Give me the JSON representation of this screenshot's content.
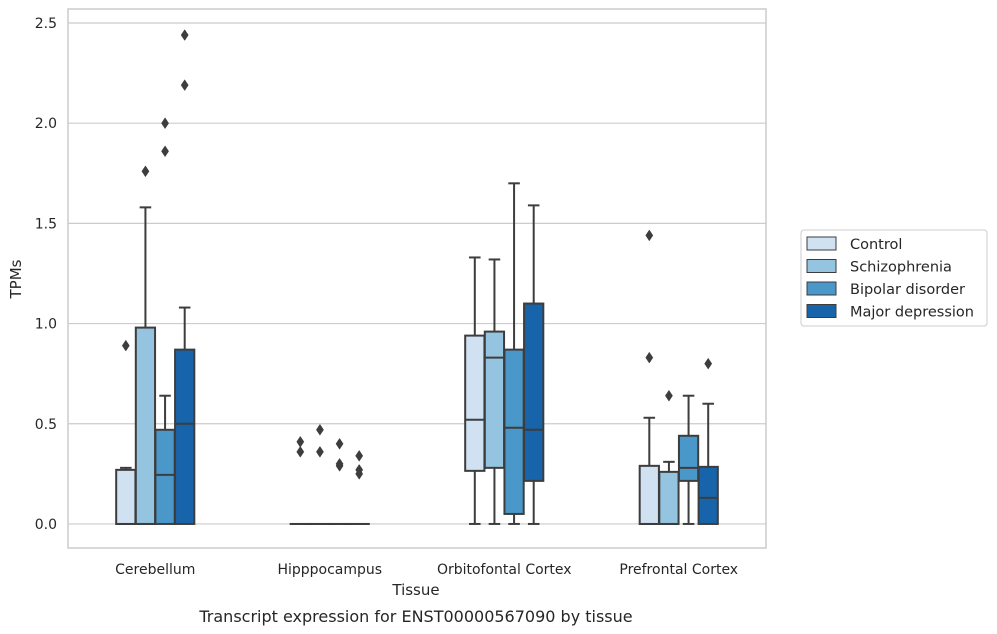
{
  "chart_data": {
    "type": "box",
    "caption": "Transcript expression for ENST00000567090 by tissue",
    "xlabel": "Tissue",
    "ylabel": "TPMs",
    "ylim": [
      -0.12,
      2.57
    ],
    "yticks": [
      "0.0",
      "0.5",
      "1.0",
      "1.5",
      "2.0",
      "2.5"
    ],
    "ytick_values": [
      0,
      0.5,
      1.0,
      1.5,
      2.0,
      2.5
    ],
    "grid": true,
    "legend_position": "right",
    "categories": [
      "Cerebellum",
      "Hipppocampus",
      "Orbitofontal Cortex",
      "Prefrontal Cortex"
    ],
    "series": [
      {
        "name": "Control",
        "color": "#d0e1f2",
        "boxes": [
          {
            "q1": 0.0,
            "median": 0.0,
            "q3": 0.27,
            "whisker_low": 0.0,
            "whisker_high": 0.28,
            "outliers": [
              0.89
            ]
          },
          {
            "q1": 0.0,
            "median": 0.0,
            "q3": 0.0,
            "whisker_low": 0.0,
            "whisker_high": 0.0,
            "outliers": [
              0.41,
              0.36
            ]
          },
          {
            "q1": 0.265,
            "median": 0.52,
            "q3": 0.94,
            "whisker_low": 0.0,
            "whisker_high": 1.33,
            "outliers": []
          },
          {
            "q1": 0.0,
            "median": 0.0,
            "q3": 0.29,
            "whisker_low": 0.0,
            "whisker_high": 0.53,
            "outliers": [
              1.44,
              0.83
            ]
          }
        ]
      },
      {
        "name": "Schizophrenia",
        "color": "#94c4df",
        "boxes": [
          {
            "q1": 0.0,
            "median": 0.0,
            "q3": 0.98,
            "whisker_low": 0.0,
            "whisker_high": 1.58,
            "outliers": [
              1.76
            ]
          },
          {
            "q1": 0.0,
            "median": 0.0,
            "q3": 0.0,
            "whisker_low": 0.0,
            "whisker_high": 0.0,
            "outliers": [
              0.47,
              0.36
            ]
          },
          {
            "q1": 0.28,
            "median": 0.83,
            "q3": 0.96,
            "whisker_low": 0.0,
            "whisker_high": 1.32,
            "outliers": []
          },
          {
            "q1": 0.0,
            "median": 0.0,
            "q3": 0.26,
            "whisker_low": 0.0,
            "whisker_high": 0.31,
            "outliers": [
              0.64
            ]
          }
        ]
      },
      {
        "name": "Bipolar disorder",
        "color": "#4a98c9",
        "boxes": [
          {
            "q1": 0.0,
            "median": 0.245,
            "q3": 0.47,
            "whisker_low": 0.0,
            "whisker_high": 0.64,
            "outliers": [
              2.0,
              1.86
            ]
          },
          {
            "q1": 0.0,
            "median": 0.0,
            "q3": 0.0,
            "whisker_low": 0.0,
            "whisker_high": 0.0,
            "outliers": [
              0.4,
              0.3,
              0.29
            ]
          },
          {
            "q1": 0.05,
            "median": 0.48,
            "q3": 0.87,
            "whisker_low": 0.0,
            "whisker_high": 1.7,
            "outliers": []
          },
          {
            "q1": 0.215,
            "median": 0.28,
            "q3": 0.44,
            "whisker_low": 0.0,
            "whisker_high": 0.64,
            "outliers": []
          }
        ]
      },
      {
        "name": "Major depression",
        "color": "#1764ab",
        "boxes": [
          {
            "q1": 0.0,
            "median": 0.5,
            "q3": 0.87,
            "whisker_low": 0.0,
            "whisker_high": 1.08,
            "outliers": [
              2.44,
              2.19
            ]
          },
          {
            "q1": 0.0,
            "median": 0.0,
            "q3": 0.0,
            "whisker_low": 0.0,
            "whisker_high": 0.0,
            "outliers": [
              0.34,
              0.27,
              0.25
            ]
          },
          {
            "q1": 0.215,
            "median": 0.47,
            "q3": 1.1,
            "whisker_low": 0.0,
            "whisker_high": 1.59,
            "outliers": []
          },
          {
            "q1": 0.0,
            "median": 0.13,
            "q3": 0.285,
            "whisker_low": 0.0,
            "whisker_high": 0.6,
            "outliers": [
              0.8
            ]
          }
        ]
      }
    ]
  }
}
